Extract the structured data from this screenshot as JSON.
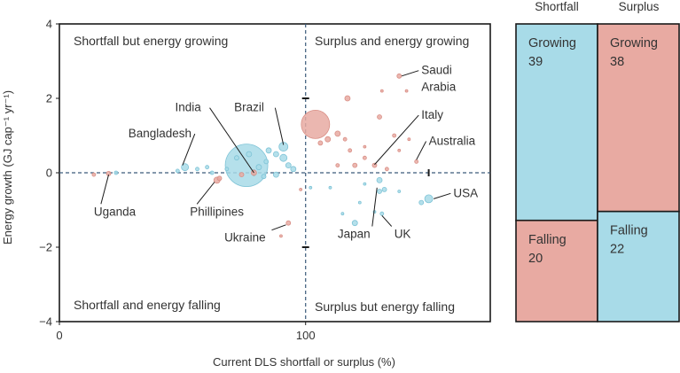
{
  "chart_data": [
    {
      "type": "scatter",
      "xlabel": "Current DLS shortfall or surplus (%)",
      "ylabel": "Energy growth (GJ cap⁻¹ yr⁻¹)",
      "xlim": [
        0,
        175
      ],
      "ylim": [
        -4,
        4
      ],
      "x_ticks": [
        "0",
        "100"
      ],
      "y_ticks": [
        "4",
        "2",
        "0",
        "−2",
        "−4"
      ],
      "grid": false,
      "reference_lines": {
        "x": 100,
        "y": 0,
        "style": "dashed"
      },
      "quadrant_labels": {
        "top_left": "Shortfall but energy growing",
        "top_right": "Surplus and energy growing",
        "bottom_left": "Shortfall and energy falling",
        "bottom_right": "Surplus but energy falling"
      },
      "colors": {
        "growing_shortfall": "#a8dbe8",
        "surplus_growing": "#e8aaa2",
        "axis": "#1a1a1a",
        "reference": "#3a5a7a"
      },
      "points": [
        {
          "x": 76,
          "y": 0.2,
          "s": 24,
          "c": "b"
        },
        {
          "x": 104,
          "y": 1.3,
          "s": 16,
          "c": "r"
        },
        {
          "x": 91,
          "y": 0.7,
          "s": 5,
          "c": "b"
        },
        {
          "x": 91,
          "y": 0.4,
          "s": 4,
          "c": "b"
        },
        {
          "x": 88,
          "y": 0.5,
          "s": 3,
          "c": "b"
        },
        {
          "x": 85,
          "y": 0.6,
          "s": 3,
          "c": "b"
        },
        {
          "x": 93,
          "y": 0.2,
          "s": 3,
          "c": "b"
        },
        {
          "x": 84,
          "y": 0.3,
          "s": 2.5,
          "c": "b"
        },
        {
          "x": 81,
          "y": 0.15,
          "s": 3,
          "c": "b"
        },
        {
          "x": 77,
          "y": 0.5,
          "s": 3,
          "c": "b"
        },
        {
          "x": 72,
          "y": 0.4,
          "s": 2.5,
          "c": "b"
        },
        {
          "x": 95,
          "y": 0.1,
          "s": 3,
          "c": "b"
        },
        {
          "x": 88,
          "y": -0.05,
          "s": 3,
          "c": "b"
        },
        {
          "x": 83,
          "y": -0.1,
          "s": 2.5,
          "c": "b"
        },
        {
          "x": 79,
          "y": 0.0,
          "s": 3,
          "c": "r"
        },
        {
          "x": 74,
          "y": -0.05,
          "s": 2.5,
          "c": "r"
        },
        {
          "x": 68,
          "y": 0.1,
          "s": 2,
          "c": "b"
        },
        {
          "x": 62,
          "y": 0.0,
          "s": 2,
          "c": "b"
        },
        {
          "x": 60,
          "y": 0.15,
          "s": 2,
          "c": "b"
        },
        {
          "x": 56,
          "y": 0.1,
          "s": 2,
          "c": "b"
        },
        {
          "x": 51,
          "y": 0.15,
          "s": 4,
          "c": "b"
        },
        {
          "x": 48,
          "y": 0.05,
          "s": 2,
          "c": "b"
        },
        {
          "x": 64,
          "y": -0.2,
          "s": 3.5,
          "c": "r"
        },
        {
          "x": 65,
          "y": -0.15,
          "s": 2.5,
          "c": "r"
        },
        {
          "x": 20,
          "y": -0.02,
          "s": 2.5,
          "c": "r"
        },
        {
          "x": 14,
          "y": -0.05,
          "s": 2,
          "c": "r"
        },
        {
          "x": 23,
          "y": 0.0,
          "s": 2,
          "c": "b"
        },
        {
          "x": 93,
          "y": -1.35,
          "s": 2.5,
          "c": "r"
        },
        {
          "x": 90,
          "y": -1.7,
          "s": 1.5,
          "c": "r"
        },
        {
          "x": 98,
          "y": -0.45,
          "s": 1.5,
          "c": "r"
        },
        {
          "x": 109,
          "y": 0.9,
          "s": 3,
          "c": "r"
        },
        {
          "x": 113,
          "y": 1.05,
          "s": 3,
          "c": "r"
        },
        {
          "x": 106,
          "y": 0.8,
          "s": 2.5,
          "c": "r"
        },
        {
          "x": 116,
          "y": 0.9,
          "s": 2,
          "c": "r"
        },
        {
          "x": 118,
          "y": 0.6,
          "s": 2,
          "c": "r"
        },
        {
          "x": 117,
          "y": 2.0,
          "s": 3,
          "c": "r"
        },
        {
          "x": 130,
          "y": 1.5,
          "s": 2.5,
          "c": "r"
        },
        {
          "x": 128,
          "y": 0.2,
          "s": 2.5,
          "c": "r"
        },
        {
          "x": 120,
          "y": 0.2,
          "s": 2.5,
          "c": "r"
        },
        {
          "x": 113,
          "y": 0.2,
          "s": 2,
          "c": "r"
        },
        {
          "x": 124,
          "y": 0.4,
          "s": 2,
          "c": "r"
        },
        {
          "x": 133,
          "y": 0.1,
          "s": 2,
          "c": "r"
        },
        {
          "x": 136,
          "y": 1.0,
          "s": 2,
          "c": "r"
        },
        {
          "x": 142,
          "y": 0.9,
          "s": 1.5,
          "c": "r"
        },
        {
          "x": 138,
          "y": 0.6,
          "s": 1.5,
          "c": "r"
        },
        {
          "x": 145,
          "y": 0.3,
          "s": 2,
          "c": "r"
        },
        {
          "x": 138,
          "y": 2.6,
          "s": 2.5,
          "c": "r"
        },
        {
          "x": 131,
          "y": 2.2,
          "s": 1.5,
          "c": "r"
        },
        {
          "x": 141,
          "y": 2.2,
          "s": 1.5,
          "c": "r"
        },
        {
          "x": 124,
          "y": 0.7,
          "s": 1.5,
          "c": "r"
        },
        {
          "x": 150,
          "y": -0.7,
          "s": 4.5,
          "c": "b"
        },
        {
          "x": 147,
          "y": -0.8,
          "s": 2.5,
          "c": "b"
        },
        {
          "x": 130,
          "y": -0.2,
          "s": 3,
          "c": "b"
        },
        {
          "x": 130,
          "y": -0.5,
          "s": 2.5,
          "c": "b"
        },
        {
          "x": 132,
          "y": -0.45,
          "s": 2.5,
          "c": "b"
        },
        {
          "x": 131,
          "y": -1.1,
          "s": 2,
          "c": "b"
        },
        {
          "x": 128,
          "y": -1.05,
          "s": 1.5,
          "c": "b"
        },
        {
          "x": 120,
          "y": -1.35,
          "s": 3,
          "c": "b"
        },
        {
          "x": 115,
          "y": -1.1,
          "s": 1.5,
          "c": "b"
        },
        {
          "x": 122,
          "y": -0.8,
          "s": 1.5,
          "c": "b"
        },
        {
          "x": 110,
          "y": -0.4,
          "s": 1.5,
          "c": "b"
        },
        {
          "x": 124,
          "y": -0.3,
          "s": 1.5,
          "c": "b"
        },
        {
          "x": 102,
          "y": -0.4,
          "s": 1.5,
          "c": "b"
        },
        {
          "x": 138,
          "y": -0.5,
          "s": 1.5,
          "c": "b"
        }
      ],
      "labels": [
        {
          "text": "Saudi",
          "x": 147,
          "y": 2.65,
          "ax": 139,
          "ay": 2.6
        },
        {
          "text": "Arabia",
          "x": 147,
          "y": 2.2
        },
        {
          "text": "Italy",
          "x": 147,
          "y": 1.45,
          "ax": 128,
          "ay": 0.22
        },
        {
          "text": "Australia",
          "x": 150,
          "y": 0.75,
          "ax": 145,
          "ay": 0.35
        },
        {
          "text": "USA",
          "x": 160,
          "y": -0.65,
          "ax": 152,
          "ay": -0.7
        },
        {
          "text": "UK",
          "x": 136,
          "y": -1.75,
          "ax": 131,
          "ay": -1.15
        },
        {
          "text": "Japan",
          "x": 113,
          "y": -1.75,
          "ax": 129,
          "ay": -0.4
        },
        {
          "text": "Ukraine",
          "x": 67,
          "y": -1.85,
          "ax": 92,
          "ay": -1.4
        },
        {
          "text": "Uganda",
          "x": 14,
          "y": -1.15,
          "ax": 20,
          "ay": -0.05
        },
        {
          "text": "Phillipines",
          "x": 53,
          "y": -1.15,
          "ax": 63,
          "ay": -0.25
        },
        {
          "text": "Bangladesh",
          "x": 28,
          "y": 0.95,
          "ax": 50,
          "ay": 0.2
        },
        {
          "text": "India",
          "x": 47,
          "y": 1.65,
          "ax": 79,
          "ay": 0.0
        },
        {
          "text": "Brazil",
          "x": 71,
          "y": 1.65,
          "ax": 91,
          "ay": 0.75
        }
      ]
    },
    {
      "type": "mosaic",
      "columns": [
        "Shortfall",
        "Surplus"
      ],
      "cells": [
        {
          "col": "Shortfall",
          "label": "Growing",
          "value": 39,
          "share": 0.66,
          "color": "#a8dbe8"
        },
        {
          "col": "Shortfall",
          "label": "Falling",
          "value": 20,
          "share": 0.34,
          "color": "#e8aaa2"
        },
        {
          "col": "Surplus",
          "label": "Growing",
          "value": 38,
          "share": 0.63,
          "color": "#e8aaa2"
        },
        {
          "col": "Surplus",
          "label": "Falling",
          "value": 22,
          "share": 0.37,
          "color": "#a8dbe8"
        }
      ]
    }
  ]
}
